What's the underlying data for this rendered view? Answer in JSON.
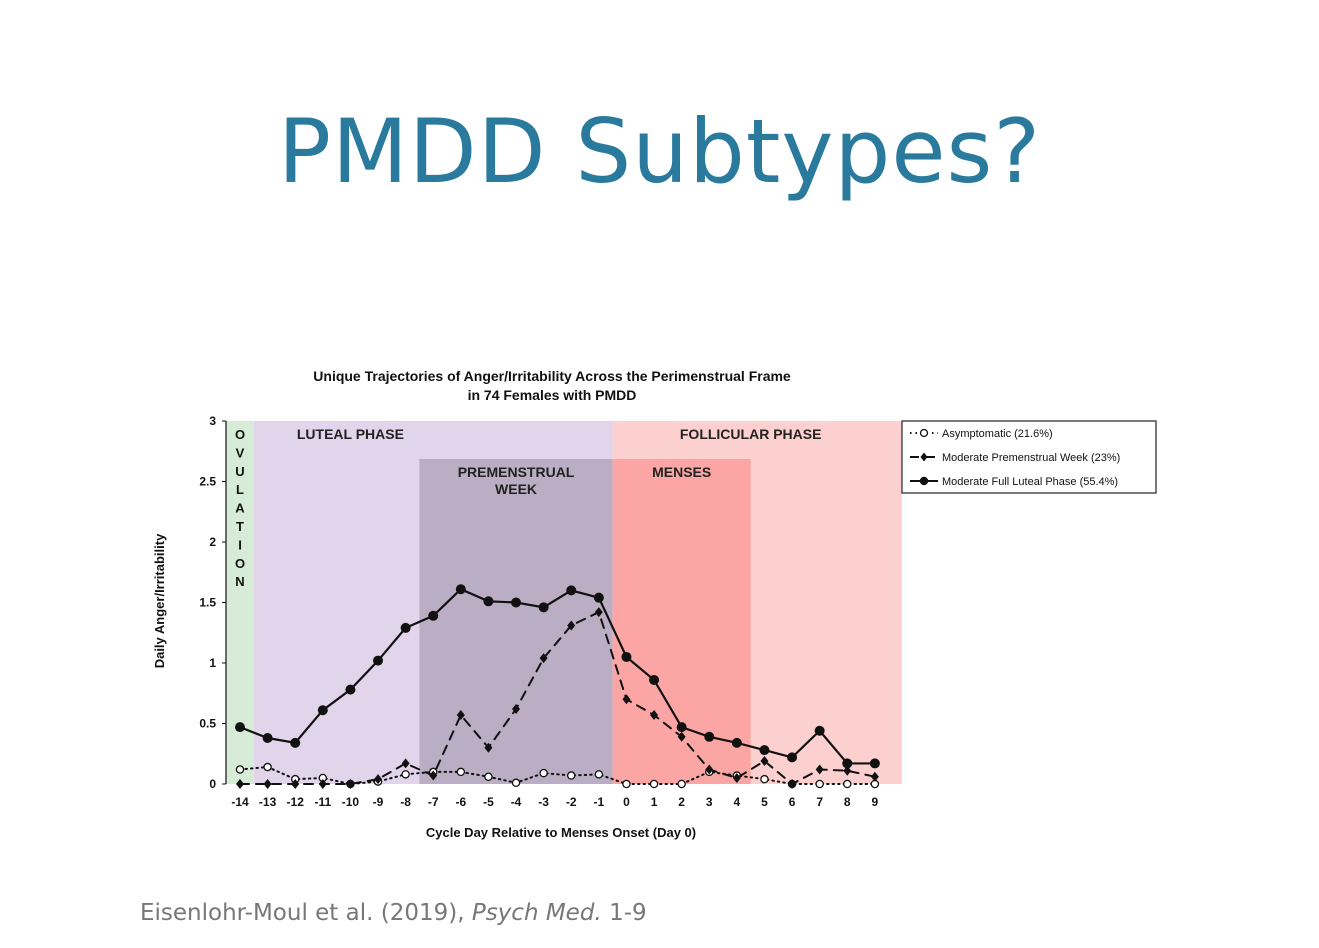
{
  "slide": {
    "title": "PMDD Subtypes?",
    "citation": {
      "authors": "Eisenlohr-Moul et al. (2019),",
      "journal": "Psych Med.",
      "pages": "1-9"
    }
  },
  "chart_data": {
    "type": "line",
    "title_lines": [
      "Unique Trajectories of Anger/Irritability Across the Perimenstrual Frame",
      "in 74 Females with PMDD"
    ],
    "xlabel": "Cycle Day Relative to Menses Onset (Day 0)",
    "ylabel": "Daily Anger/Irritability",
    "x": [
      -14,
      -13,
      -12,
      -11,
      -10,
      -9,
      -8,
      -7,
      -6,
      -5,
      -4,
      -3,
      -2,
      -1,
      0,
      1,
      2,
      3,
      4,
      5,
      6,
      7,
      8,
      9
    ],
    "ylim": [
      0,
      3
    ],
    "yticks": [
      "0",
      "0.5",
      "1",
      "1.5",
      "2",
      "2.5",
      "3"
    ],
    "legend_position": "right",
    "phases": [
      {
        "label": "OVULATION",
        "from": -14,
        "to": -14,
        "color": "#d6ecd6",
        "vertical": true
      },
      {
        "label": "LUTEAL PHASE",
        "from": -14,
        "to": -1,
        "color": "#e2d4ea"
      },
      {
        "label": "PREMENSTRUAL WEEK",
        "label_lines": [
          "PREMENSTRUAL",
          "WEEK"
        ],
        "from": -7,
        "to": -1,
        "color": "#bbaec4"
      },
      {
        "label": "FOLLICULAR PHASE",
        "from": 0,
        "to": 9,
        "color": "#fdd0d0"
      },
      {
        "label": "MENSES",
        "from": 0,
        "to": 4,
        "color": "#fba6a4"
      }
    ],
    "series": [
      {
        "name": "Asymptomatic (21.6%)",
        "style": "dotted",
        "marker": "open-circle",
        "values": [
          0.12,
          0.14,
          0.04,
          0.05,
          0.0,
          0.02,
          0.08,
          0.1,
          0.1,
          0.06,
          0.01,
          0.09,
          0.07,
          0.08,
          0.0,
          0.0,
          0.0,
          0.1,
          0.07,
          0.04,
          0.0,
          0.0,
          0.0,
          0.0
        ]
      },
      {
        "name": "Moderate Premenstrual Week (23%)",
        "style": "dashed",
        "marker": "diamond",
        "values": [
          0.0,
          0.0,
          0.0,
          0.0,
          0.0,
          0.04,
          0.17,
          0.07,
          0.57,
          0.3,
          0.62,
          1.04,
          1.31,
          1.42,
          0.7,
          0.57,
          0.39,
          0.12,
          0.05,
          0.19,
          0.0,
          0.12,
          0.11,
          0.06
        ]
      },
      {
        "name": "Moderate Full Luteal Phase (55.4%)",
        "style": "solid",
        "marker": "filled-circle",
        "values": [
          0.47,
          0.38,
          0.34,
          0.61,
          0.78,
          1.02,
          1.29,
          1.39,
          1.61,
          1.51,
          1.5,
          1.46,
          1.6,
          1.54,
          1.05,
          0.86,
          0.47,
          0.39,
          0.34,
          0.28,
          0.22,
          0.44,
          0.17,
          0.17
        ]
      }
    ]
  }
}
